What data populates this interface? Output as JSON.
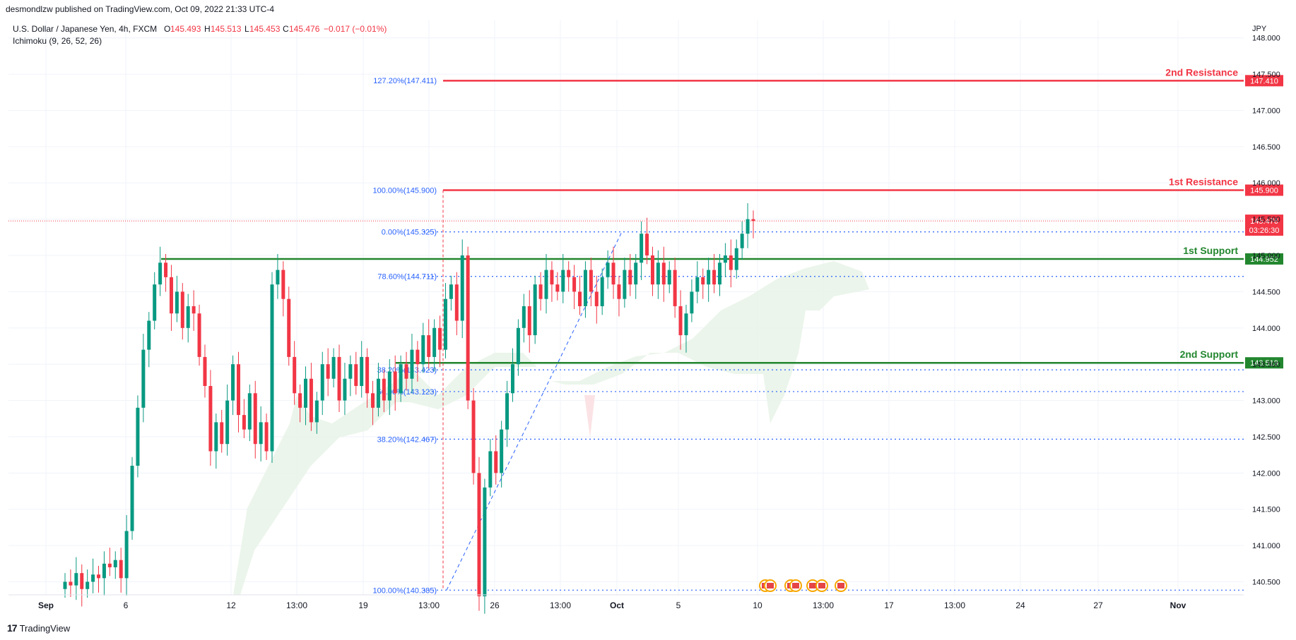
{
  "header": {
    "published_line": "desmondlzw published on TradingView.com, Oct 09, 2022 21:33 UTC-4"
  },
  "legend": {
    "symbol": "U.S. Dollar / Japanese Yen, 4h, FXCM",
    "o_label": "O",
    "o_value": "145.493",
    "h_label": "H",
    "h_value": "145.513",
    "l_label": "L",
    "l_value": "145.453",
    "c_label": "C",
    "c_value": "145.476",
    "change": "−0.017 (−0.01%)",
    "indicator": "Ichimoku (9, 26, 52, 26)"
  },
  "footer": {
    "logo_mark": "17",
    "logo_text": "TradingView"
  },
  "colors": {
    "up": "#089981",
    "down": "#f23645",
    "resistance": "#f23645",
    "support": "#22862e",
    "fib": "#2962ff",
    "fib_text": "#2962ff",
    "cloud": "#e8f3e8",
    "cloud_red": "#fbe3e5",
    "grid": "#f0f3fa",
    "axis_text": "#131722"
  },
  "chart_data": {
    "type": "candlestick",
    "currency": "JPY",
    "ylim": [
      140.32,
      148.25
    ],
    "yticks": [
      "148.000",
      "147.500",
      "147.000",
      "146.500",
      "146.000",
      "145.500",
      "145.000",
      "144.500",
      "144.000",
      "143.500",
      "143.000",
      "142.500",
      "142.000",
      "141.500",
      "141.000",
      "140.500"
    ],
    "xticks": [
      "Sep",
      "6",
      "12",
      "13:00",
      "19",
      "13:00",
      "26",
      "13:00",
      "Oct",
      "5",
      "10",
      "13:00",
      "17",
      "13:00",
      "24",
      "27",
      "Nov"
    ],
    "last_price": {
      "value": "145.476",
      "countdown": "03:26:30"
    },
    "levels": [
      {
        "name": "2nd Resistance",
        "value": 147.41,
        "label": "147.410",
        "kind": "resistance"
      },
      {
        "name": "1st Resistance",
        "value": 145.9,
        "label": "145.900",
        "kind": "resistance"
      },
      {
        "name": "1st Support",
        "value": 144.952,
        "label": "144.952",
        "kind": "support"
      },
      {
        "name": "2nd Support",
        "value": 143.519,
        "label": "143.519",
        "kind": "support"
      }
    ],
    "fib_levels": [
      {
        "label": "127.20%(147.411)",
        "value": 147.411
      },
      {
        "label": "100.00%(145.900)",
        "value": 145.9
      },
      {
        "label": "0.00%(145.325)",
        "value": 145.325
      },
      {
        "label": "78.60%(144.711)",
        "value": 144.711
      },
      {
        "label": "38.20%(143.423)",
        "value": 143.423
      },
      {
        "label": "50.00%(143.123)",
        "value": 143.123
      },
      {
        "label": "38.20%(142.467)",
        "value": 142.467
      },
      {
        "label": "100.00%(140.385)",
        "value": 140.385
      }
    ],
    "candle_closes": [
      140.5,
      140.45,
      140.62,
      140.4,
      140.5,
      140.6,
      140.55,
      140.75,
      140.7,
      140.8,
      140.55,
      141.2,
      142.1,
      142.9,
      143.7,
      144.1,
      144.6,
      144.9,
      144.7,
      144.2,
      144.5,
      144.0,
      144.3,
      144.2,
      143.6,
      143.2,
      142.3,
      142.7,
      142.4,
      143.0,
      143.5,
      142.8,
      142.6,
      143.1,
      142.4,
      142.7,
      142.3,
      144.6,
      144.8,
      144.4,
      143.6,
      143.1,
      142.9,
      143.3,
      142.7,
      143.0,
      143.5,
      143.3,
      143.6,
      143.0,
      143.3,
      143.5,
      143.2,
      143.6,
      143.1,
      142.9,
      143.3,
      143.0,
      143.4,
      143.1,
      143.5,
      143.3,
      143.7,
      143.5,
      143.9,
      143.6,
      144.0,
      143.7,
      144.4,
      144.6,
      144.1,
      145.0,
      143.0,
      142.0,
      140.3,
      141.8,
      142.3,
      142.0,
      142.6,
      143.1,
      143.5,
      144.0,
      144.3,
      143.9,
      144.6,
      144.4,
      144.8,
      144.6,
      144.5,
      144.8,
      144.7,
      144.5,
      144.3,
      144.8,
      144.5,
      144.3,
      144.7,
      144.9,
      144.6,
      144.4,
      144.8,
      144.6,
      144.9,
      145.3,
      145.0,
      144.6,
      144.9,
      144.6,
      144.8,
      144.3,
      143.9,
      144.2,
      144.5,
      144.7,
      144.6,
      144.8,
      144.6,
      144.9,
      145.0,
      144.8,
      145.1,
      145.3,
      145.5,
      145.476
    ],
    "events": [
      "us-flag-icon",
      "us-flag-icon",
      "us-flag-icon",
      "us-flag-icon",
      "us-flag-icon",
      "us-flag-icon",
      "us-flag-icon"
    ]
  }
}
